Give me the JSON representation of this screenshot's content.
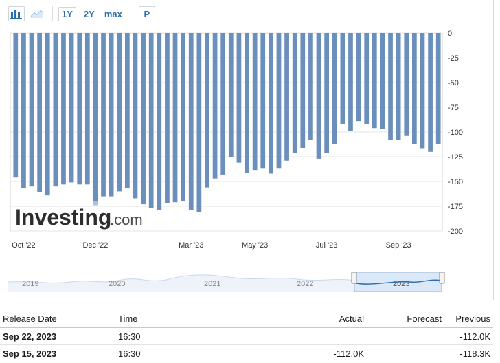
{
  "toolbar": {
    "bar_chart_icon": "bar-chart-icon",
    "line_chart_icon": "line-chart-icon",
    "ranges": [
      "1Y",
      "2Y",
      "max"
    ],
    "active_range": "1Y",
    "p_button": "P"
  },
  "watermark": {
    "brand": "Investing",
    "suffix": ".com"
  },
  "colors": {
    "bar": "#6a8fbd",
    "grid": "#e6e6e6",
    "brand": "#2d2d2d",
    "accent_link": "#2a6eb0",
    "navigator_fill": "#dbe8f7"
  },
  "chart_data": {
    "type": "bar",
    "x_tick_labels": [
      "Oct '22",
      "Dec '22",
      "Mar '23",
      "May '23",
      "Jul '23",
      "Sep '23"
    ],
    "y_tick_labels": [
      "0",
      "-25",
      "-50",
      "-75",
      "-100",
      "-125",
      "-150",
      "-175",
      "-200"
    ],
    "ylim": [
      -200,
      0
    ],
    "values": [
      -146,
      -157,
      -155,
      -161,
      -164,
      -155,
      -153,
      -151,
      -153,
      -153,
      -170,
      -165,
      -165,
      -160,
      -157,
      -167,
      -173,
      -177,
      -179,
      -172,
      -171,
      -170,
      -179,
      -181,
      -156,
      -147,
      -143,
      -125,
      -131,
      -141,
      -139,
      -137,
      -142,
      -137,
      -129,
      -121,
      -116,
      -108,
      -127,
      -121,
      -112,
      -92,
      -99,
      -89,
      -92,
      -96,
      -97,
      -108,
      -108,
      -104,
      -112,
      -117,
      -120,
      -112
    ],
    "highlight_stack": {
      "index": 10,
      "value": -4
    },
    "navigator": {
      "year_labels": [
        "2019",
        "2020",
        "2021",
        "2022",
        "2023"
      ],
      "selected": "2023"
    }
  },
  "table": {
    "headers": [
      "Release Date",
      "Time",
      "Actual",
      "Forecast",
      "Previous"
    ],
    "rows": [
      [
        "Sep 22, 2023",
        "16:30",
        "",
        "",
        "-112.0K"
      ],
      [
        "Sep 15, 2023",
        "16:30",
        "-112.0K",
        "",
        "-118.3K"
      ]
    ]
  }
}
